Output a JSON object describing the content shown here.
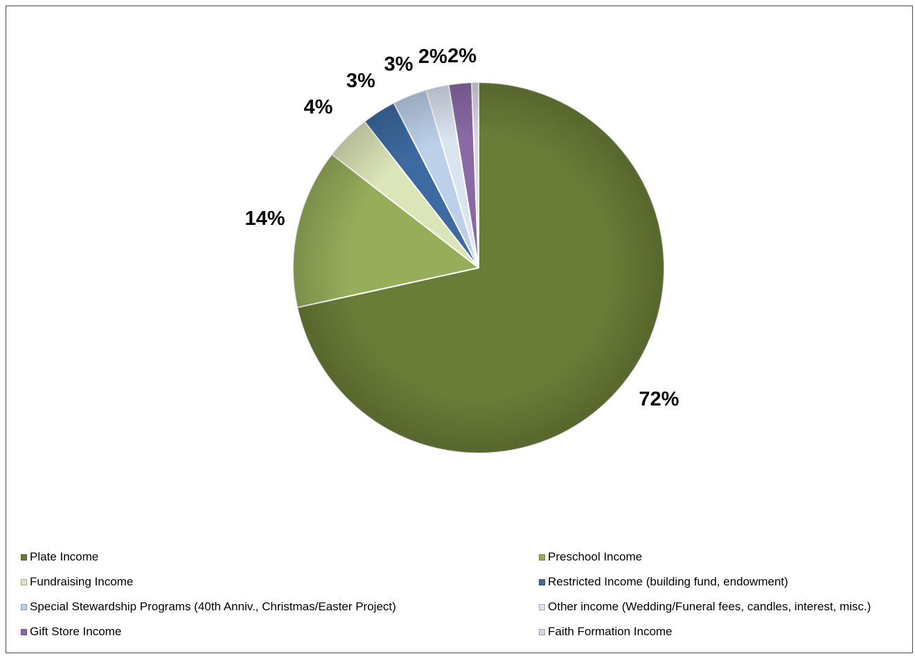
{
  "chart_data": {
    "type": "pie",
    "title": "",
    "start_angle_deg": 90,
    "direction": "clockwise",
    "slices": [
      {
        "label": "Plate Income",
        "value": 72,
        "display": "72%",
        "color": "#6a7d37"
      },
      {
        "label": "Preschool Income",
        "value": 14,
        "display": "14%",
        "color": "#97ad5a"
      },
      {
        "label": "Fundraising Income",
        "value": 4,
        "display": "4%",
        "color": "#dce5b8"
      },
      {
        "label": "Restricted Income (building fund, endowment)",
        "value": 3,
        "display": "3%",
        "color": "#3d6aa0"
      },
      {
        "label": "Special Stewardship Programs (40th Anniv., Christmas/Easter Project)",
        "value": 3,
        "display": "3%",
        "color": "#bcd0ea"
      },
      {
        "label": "Other income (Wedding/Funeral fees, candles, interest, misc.)",
        "value": 2,
        "display": "2%",
        "color": "#dbe4f1"
      },
      {
        "label": "Gift Store Income",
        "value": 2,
        "display": "2%",
        "color": "#8a6aa6"
      },
      {
        "label": "Faith Formation Income",
        "value": 0.6,
        "display": "",
        "color": "#d6d6e6"
      }
    ],
    "legend_position": "bottom"
  }
}
